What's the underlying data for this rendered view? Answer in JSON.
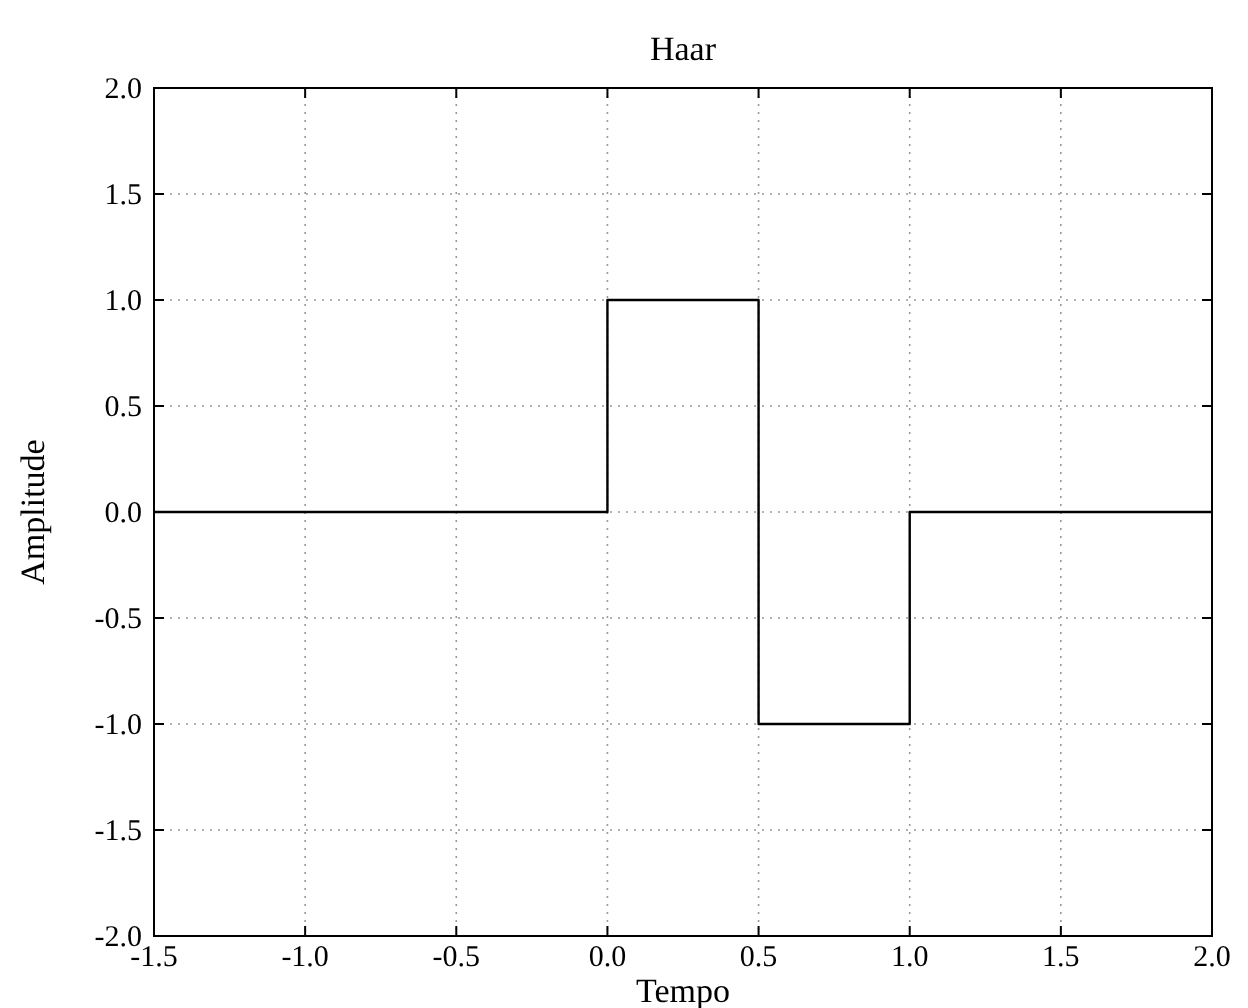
{
  "chart_data": {
    "type": "line",
    "title": "Haar",
    "xlabel": "Tempo",
    "ylabel": "Amplitude",
    "x": [
      -1.5,
      0,
      0,
      0.5,
      0.5,
      1,
      1,
      2
    ],
    "series": [
      {
        "color": "#000000",
        "values": [
          0,
          0,
          1,
          1,
          -1,
          -1,
          0,
          0
        ]
      }
    ],
    "xlim": [
      -1.5,
      2
    ],
    "ylim": [
      -2,
      2
    ],
    "xticks": [
      {
        "value": -1.5,
        "label": "-1.5"
      },
      {
        "value": -1,
        "label": "-1.0"
      },
      {
        "value": -0.5,
        "label": "-0.5"
      },
      {
        "value": 0,
        "label": "0.0"
      },
      {
        "value": 0.5,
        "label": "0.5"
      },
      {
        "value": 1,
        "label": "1.0"
      },
      {
        "value": 1.5,
        "label": "1.5"
      },
      {
        "value": 2,
        "label": "2.0"
      }
    ],
    "yticks": [
      {
        "value": -2,
        "label": "-2.0"
      },
      {
        "value": -1.5,
        "label": "-1.5"
      },
      {
        "value": -1,
        "label": "-1.0"
      },
      {
        "value": -0.5,
        "label": "-0.5"
      },
      {
        "value": 0,
        "label": "0.0"
      },
      {
        "value": 0.5,
        "label": "0.5"
      },
      {
        "value": 1,
        "label": "1.0"
      },
      {
        "value": 1.5,
        "label": "1.5"
      },
      {
        "value": 2,
        "label": "2.0"
      }
    ],
    "grid": true,
    "line_style": "solid",
    "marker": "none"
  }
}
